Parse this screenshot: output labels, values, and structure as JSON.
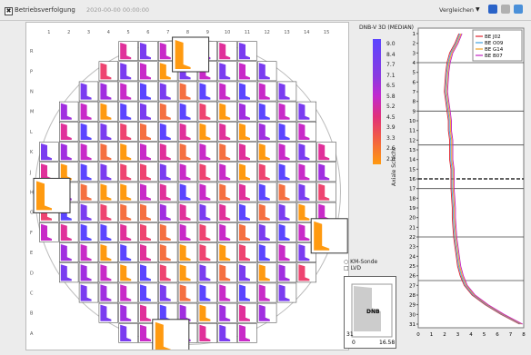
{
  "toolbar": {
    "checkbox_mark": "✖",
    "title": "Betriebsverfolgung",
    "datetime": "2020-00-00 00:00:00",
    "compare_label": "Vergleichen",
    "compare_arrow": "▼",
    "icons": [
      "save-icon",
      "print-icon",
      "refresh-icon"
    ],
    "icon_colors": [
      "#2a63c8",
      "#9a9a9a",
      "#4a90d9"
    ]
  },
  "map": {
    "col_labels": [
      "1",
      "2",
      "3",
      "4",
      "5",
      "6",
      "7",
      "8",
      "9",
      "10",
      "11",
      "12",
      "13",
      "14",
      "15"
    ],
    "row_labels": [
      "R",
      "P",
      "N",
      "M",
      "L",
      "K",
      "J",
      "H",
      "G",
      "F",
      "E",
      "D",
      "C",
      "B",
      "A"
    ],
    "legend_title": "DNB-V 3D (MEDIAN)",
    "scale_values": [
      "9.0",
      "8.4",
      "7.7",
      "7.1",
      "6.5",
      "5.8",
      "5.2",
      "4.5",
      "3.9",
      "3.3",
      "2.6",
      "2.0"
    ],
    "marker_kmsonde": "KM-Sonde",
    "marker_lvd": "LVD",
    "mini_tick_top": "31",
    "mini_tick_x0": "0",
    "mini_tick_x1": "16.58",
    "mini_label": "DNB"
  },
  "profile": {
    "ylabel": "Axiale Schicht",
    "y_ticks": [
      "1",
      "2",
      "3",
      "4",
      "5",
      "6",
      "7",
      "8",
      "9",
      "10",
      "11",
      "12",
      "13",
      "14",
      "15",
      "16",
      "17",
      "18",
      "19",
      "20",
      "21",
      "22",
      "23",
      "24",
      "25",
      "26",
      "27",
      "28",
      "29",
      "30",
      "31"
    ],
    "x_ticks": [
      "0",
      "1",
      "2",
      "3",
      "4",
      "5",
      "6",
      "7",
      "8"
    ],
    "series_names": [
      "BE J02",
      "BE O09",
      "BE G14",
      "BE B07"
    ],
    "series_colors": [
      "#e0202a",
      "#40a0e0",
      "#f0a020",
      "#c020c0"
    ]
  }
}
